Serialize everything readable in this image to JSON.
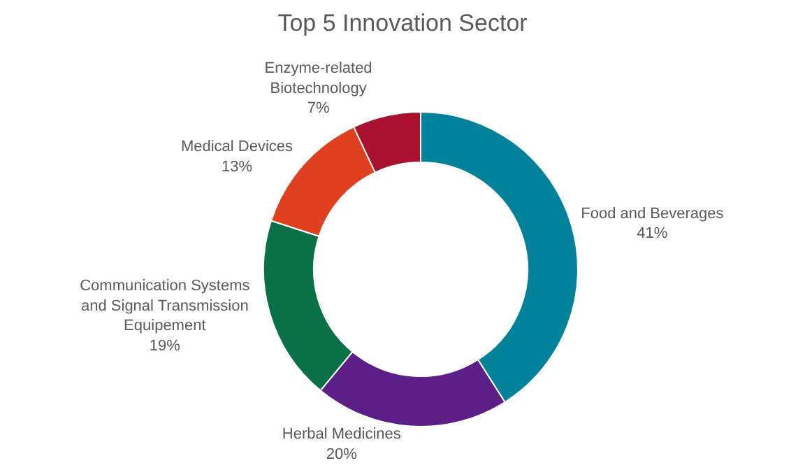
{
  "chart_data": {
    "type": "donut",
    "title": "Top 5 Innovation Sector",
    "categories": [
      "Food and Beverages",
      "Herbal Medicines",
      "Communication Systems and Signal Transmission Equipement",
      "Medical Devices",
      "Enzyme-related Biotechnology"
    ],
    "values": [
      41,
      20,
      19,
      13,
      7
    ],
    "value_labels": [
      "41%",
      "20%",
      "19%",
      "13%",
      "7%"
    ],
    "colors": [
      "#00829b",
      "#5c1f87",
      "#0a7048",
      "#e0401f",
      "#a8122e"
    ],
    "legend": false
  }
}
